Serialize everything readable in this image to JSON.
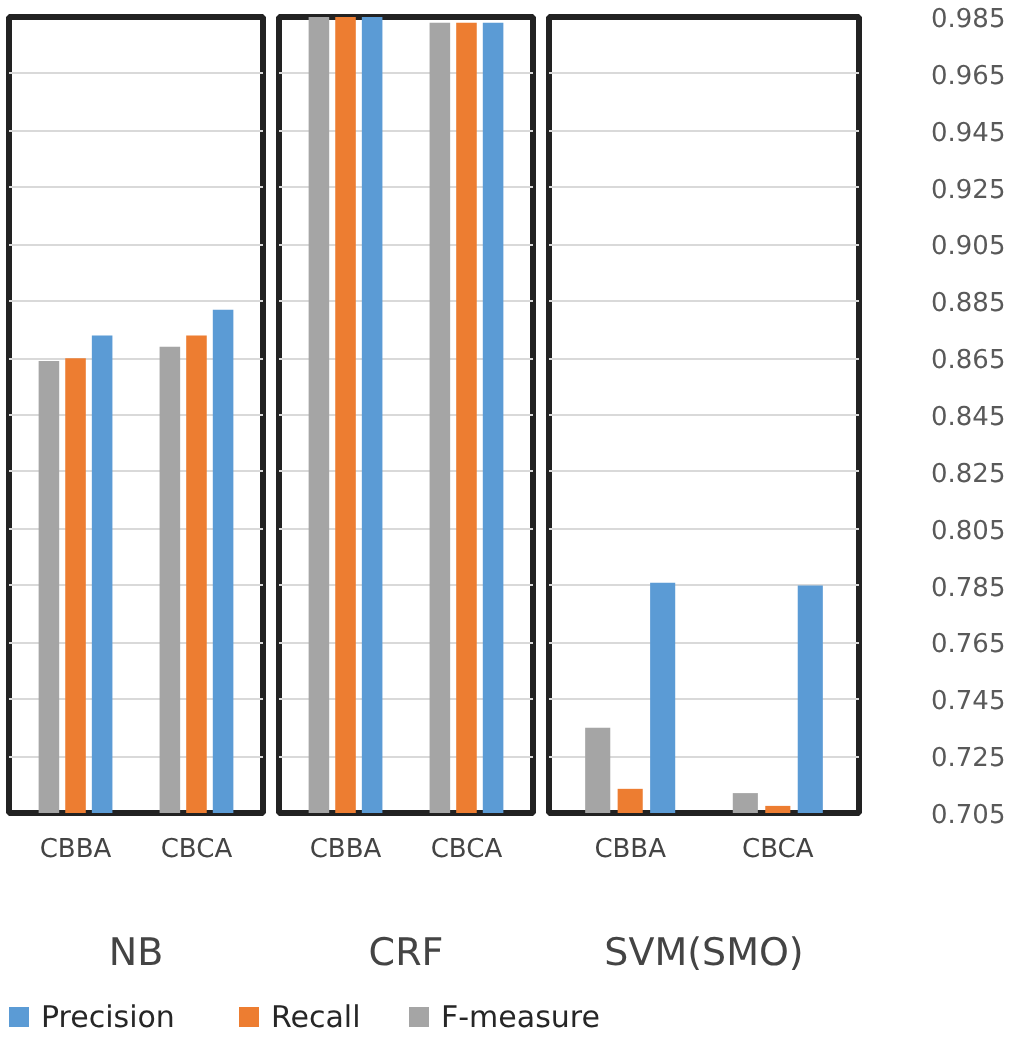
{
  "chart_data": [
    {
      "type": "bar",
      "xlabel": "NB",
      "categories": [
        "CBBA",
        "CBCA"
      ],
      "ylim": [
        0.705,
        0.985
      ],
      "yticks": [
        0.705,
        0.725,
        0.745,
        0.765,
        0.785,
        0.805,
        0.825,
        0.845,
        0.865,
        0.885,
        0.905,
        0.925,
        0.945,
        0.965,
        0.985
      ],
      "grid": "y",
      "tick_labels": "x",
      "legend": "bottom",
      "series": [
        {
          "name": "Precision",
          "color": "#5b9bd5",
          "values": [
            0.873,
            0.882
          ]
        },
        {
          "name": "Recall",
          "color": "#ed7d31",
          "values": [
            0.865,
            0.873
          ]
        },
        {
          "name": "F-measure",
          "color": "#a5a5a5",
          "values": [
            0.864,
            0.869
          ]
        }
      ]
    },
    {
      "type": "bar",
      "xlabel": "CRF",
      "categories": [
        "CBBA",
        "CBCA"
      ],
      "ylim": [
        0.705,
        0.985
      ],
      "yticks": [
        0.705,
        0.725,
        0.745,
        0.765,
        0.785,
        0.805,
        0.825,
        0.845,
        0.865,
        0.885,
        0.905,
        0.925,
        0.945,
        0.965,
        0.985
      ],
      "grid": "y",
      "tick_labels": "x",
      "series": [
        {
          "color": "#5b9bd5",
          "values": [
            0.985,
            0.983
          ]
        },
        {
          "color": "#ed7d31",
          "values": [
            0.985,
            0.983
          ]
        },
        {
          "color": "#a5a5a5",
          "values": [
            0.985,
            0.983
          ]
        }
      ]
    },
    {
      "type": "bar",
      "xlabel": "SVM(SMO)",
      "categories": [
        "CBBA",
        "CBCA"
      ],
      "ylim": [
        0.705,
        0.985
      ],
      "yticks": [
        0.705,
        0.725,
        0.745,
        0.765,
        0.785,
        0.805,
        0.825,
        0.845,
        0.865,
        0.885,
        0.905,
        0.925,
        0.945,
        0.965,
        0.985
      ],
      "grid": "y",
      "series": [
        {
          "color": "#5b9bd5",
          "values": [
            0.786,
            0.785
          ]
        },
        {
          "color": "#ed7d31",
          "values": [
            0.7135,
            0.7075
          ]
        },
        {
          "color": "#a5a5a5",
          "values": [
            0.735,
            0.712
          ]
        }
      ]
    }
  ]
}
